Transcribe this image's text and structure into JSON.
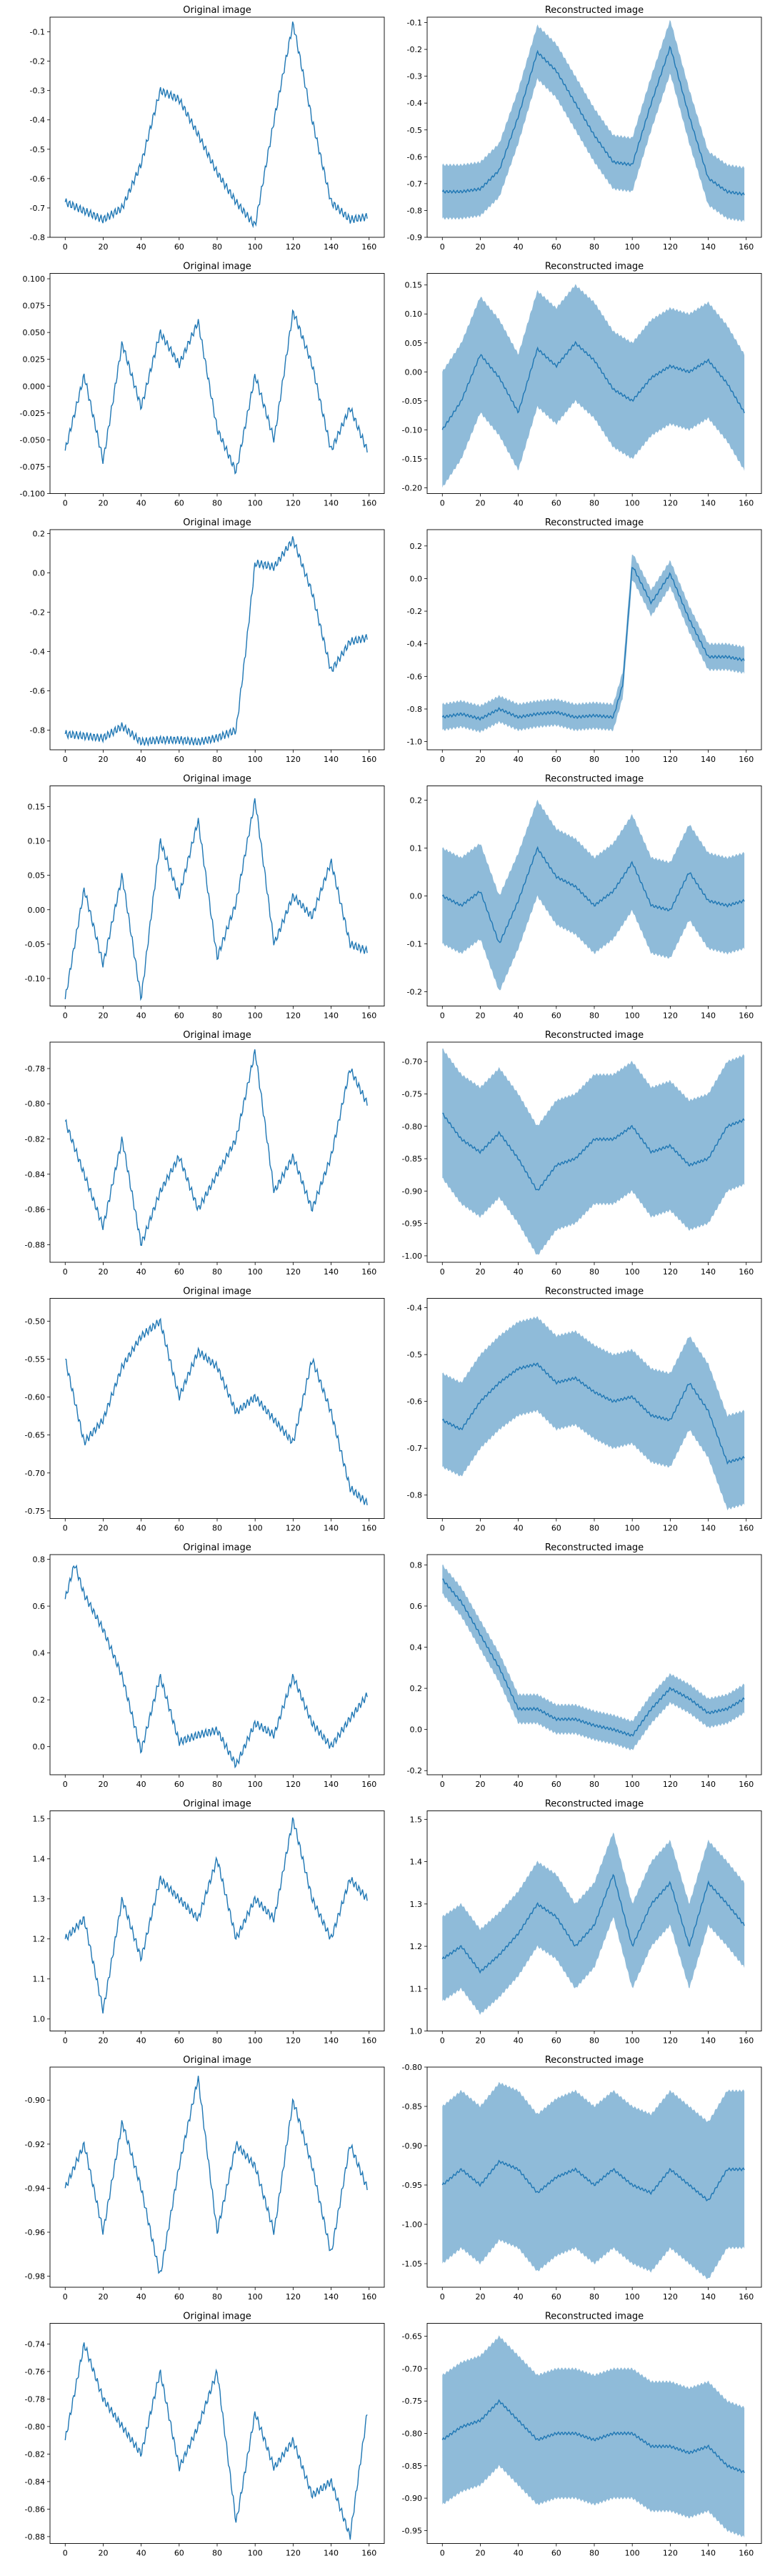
{
  "figure": {
    "line_color": "#1f77b4",
    "band_color": "#1f77b4"
  },
  "chart_data": [
    {
      "type": "line",
      "row": 0,
      "col": 0,
      "title": "Original image",
      "ylim": [
        -0.8,
        -0.05
      ],
      "yticks": [
        -0.8,
        -0.7,
        -0.6,
        -0.5,
        -0.4,
        -0.3,
        -0.2,
        -0.1
      ],
      "xlim": [
        -8,
        168
      ],
      "xticks": [
        0,
        20,
        40,
        60,
        80,
        100,
        120,
        140,
        160
      ],
      "x": [
        0,
        10,
        20,
        30,
        40,
        50,
        60,
        70,
        80,
        90,
        100,
        110,
        120,
        130,
        140,
        150,
        159
      ],
      "y": [
        -0.68,
        -0.71,
        -0.74,
        -0.7,
        -0.55,
        -0.3,
        -0.33,
        -0.45,
        -0.58,
        -0.68,
        -0.76,
        -0.4,
        -0.07,
        -0.4,
        -0.68,
        -0.74,
        -0.73
      ]
    },
    {
      "type": "area",
      "row": 0,
      "col": 1,
      "title": "Reconstructed image",
      "ylim": [
        -0.9,
        -0.08
      ],
      "yticks": [
        -0.9,
        -0.8,
        -0.7,
        -0.6,
        -0.5,
        -0.4,
        -0.3,
        -0.2,
        -0.1
      ],
      "xlim": [
        -8,
        168
      ],
      "xticks": [
        0,
        20,
        40,
        60,
        80,
        100,
        120,
        140,
        160
      ],
      "x": [
        0,
        10,
        20,
        30,
        40,
        50,
        60,
        70,
        80,
        90,
        100,
        110,
        120,
        130,
        140,
        150,
        159
      ],
      "y": [
        -0.73,
        -0.73,
        -0.72,
        -0.65,
        -0.45,
        -0.21,
        -0.28,
        -0.4,
        -0.52,
        -0.62,
        -0.63,
        -0.4,
        -0.19,
        -0.45,
        -0.68,
        -0.73,
        -0.74
      ],
      "band": 0.1
    },
    {
      "type": "line",
      "row": 1,
      "col": 0,
      "title": "Original image",
      "ylim": [
        -0.1,
        0.105
      ],
      "yticks": [
        -0.1,
        -0.075,
        -0.05,
        -0.025,
        0.0,
        0.025,
        0.05,
        0.075,
        0.1
      ],
      "xlim": [
        -8,
        168
      ],
      "xticks": [
        0,
        20,
        40,
        60,
        80,
        100,
        120,
        140,
        160
      ],
      "x": [
        0,
        10,
        20,
        30,
        40,
        50,
        60,
        70,
        80,
        90,
        100,
        110,
        120,
        130,
        140,
        150,
        159
      ],
      "y": [
        -0.06,
        0.01,
        -0.07,
        0.04,
        -0.02,
        0.05,
        0.02,
        0.06,
        -0.04,
        -0.08,
        0.01,
        -0.05,
        0.07,
        0.02,
        -0.06,
        -0.02,
        -0.06
      ]
    },
    {
      "type": "area",
      "row": 1,
      "col": 1,
      "title": "Reconstructed image",
      "ylim": [
        -0.21,
        0.17
      ],
      "yticks": [
        -0.2,
        -0.15,
        -0.1,
        -0.05,
        0.0,
        0.05,
        0.1,
        0.15
      ],
      "xlim": [
        -8,
        168
      ],
      "xticks": [
        0,
        20,
        40,
        60,
        80,
        100,
        120,
        140,
        160
      ],
      "x": [
        0,
        10,
        20,
        30,
        40,
        50,
        60,
        70,
        80,
        90,
        100,
        110,
        120,
        130,
        140,
        150,
        159
      ],
      "y": [
        -0.1,
        -0.05,
        0.03,
        -0.01,
        -0.07,
        0.04,
        0.01,
        0.05,
        0.02,
        -0.03,
        -0.05,
        -0.01,
        0.01,
        0.0,
        0.02,
        -0.02,
        -0.07
      ],
      "band": 0.1
    },
    {
      "type": "line",
      "row": 2,
      "col": 0,
      "title": "Original image",
      "ylim": [
        -0.9,
        0.22
      ],
      "yticks": [
        -0.8,
        -0.6,
        -0.4,
        -0.2,
        0.0,
        0.2
      ],
      "xlim": [
        -8,
        168
      ],
      "xticks": [
        0,
        20,
        40,
        60,
        80,
        100,
        120,
        140,
        160
      ],
      "x": [
        0,
        10,
        20,
        30,
        40,
        50,
        60,
        70,
        80,
        90,
        95,
        100,
        110,
        120,
        130,
        140,
        150,
        159
      ],
      "y": [
        -0.82,
        -0.83,
        -0.84,
        -0.78,
        -0.86,
        -0.85,
        -0.85,
        -0.86,
        -0.84,
        -0.8,
        -0.4,
        0.05,
        0.03,
        0.17,
        -0.1,
        -0.5,
        -0.35,
        -0.33
      ]
    },
    {
      "type": "area",
      "row": 2,
      "col": 1,
      "title": "Reconstructed image",
      "ylim": [
        -1.05,
        0.3
      ],
      "yticks": [
        -1.0,
        -0.8,
        -0.6,
        -0.4,
        -0.2,
        0.0,
        0.2
      ],
      "xlim": [
        -8,
        168
      ],
      "xticks": [
        0,
        20,
        40,
        60,
        80,
        100,
        120,
        140,
        160
      ],
      "x": [
        0,
        10,
        20,
        30,
        40,
        50,
        60,
        70,
        80,
        90,
        95,
        100,
        110,
        120,
        130,
        140,
        150,
        159
      ],
      "y": [
        -0.85,
        -0.83,
        -0.86,
        -0.8,
        -0.85,
        -0.83,
        -0.82,
        -0.85,
        -0.84,
        -0.85,
        -0.65,
        0.08,
        -0.15,
        0.03,
        -0.25,
        -0.48,
        -0.48,
        -0.5
      ],
      "band": 0.08
    },
    {
      "type": "line",
      "row": 3,
      "col": 0,
      "title": "Original image",
      "ylim": [
        -0.14,
        0.18
      ],
      "yticks": [
        -0.1,
        -0.05,
        0.0,
        0.05,
        0.1,
        0.15
      ],
      "xlim": [
        -8,
        168
      ],
      "xticks": [
        0,
        20,
        40,
        60,
        80,
        100,
        120,
        140,
        160
      ],
      "x": [
        0,
        10,
        20,
        30,
        40,
        50,
        60,
        70,
        80,
        90,
        100,
        110,
        120,
        130,
        140,
        150,
        159
      ],
      "y": [
        -0.13,
        0.03,
        -0.08,
        0.05,
        -0.13,
        0.1,
        0.02,
        0.13,
        -0.07,
        0.01,
        0.16,
        -0.05,
        0.02,
        -0.01,
        0.07,
        -0.05,
        -0.06
      ]
    },
    {
      "type": "area",
      "row": 3,
      "col": 1,
      "title": "Reconstructed image",
      "ylim": [
        -0.23,
        0.23
      ],
      "yticks": [
        -0.2,
        -0.1,
        0.0,
        0.1,
        0.2
      ],
      "xlim": [
        -8,
        168
      ],
      "xticks": [
        0,
        20,
        40,
        60,
        80,
        100,
        120,
        140,
        160
      ],
      "x": [
        0,
        10,
        20,
        30,
        40,
        50,
        60,
        70,
        80,
        90,
        100,
        110,
        120,
        130,
        140,
        150,
        159
      ],
      "y": [
        0.0,
        -0.02,
        0.01,
        -0.1,
        -0.01,
        0.1,
        0.04,
        0.02,
        -0.02,
        0.01,
        0.07,
        -0.02,
        -0.03,
        0.05,
        -0.01,
        -0.02,
        -0.01
      ],
      "band": 0.1
    },
    {
      "type": "line",
      "row": 4,
      "col": 0,
      "title": "Original image",
      "ylim": [
        -0.89,
        -0.765
      ],
      "yticks": [
        -0.88,
        -0.86,
        -0.84,
        -0.82,
        -0.8,
        -0.78
      ],
      "xlim": [
        -8,
        168
      ],
      "xticks": [
        0,
        20,
        40,
        60,
        80,
        100,
        120,
        140,
        160
      ],
      "x": [
        0,
        10,
        20,
        30,
        40,
        50,
        60,
        70,
        80,
        90,
        100,
        110,
        120,
        130,
        140,
        150,
        159
      ],
      "y": [
        -0.81,
        -0.84,
        -0.87,
        -0.82,
        -0.88,
        -0.85,
        -0.83,
        -0.86,
        -0.84,
        -0.82,
        -0.77,
        -0.85,
        -0.83,
        -0.86,
        -0.83,
        -0.78,
        -0.8
      ]
    },
    {
      "type": "area",
      "row": 4,
      "col": 1,
      "title": "Reconstructed image",
      "ylim": [
        -1.01,
        -0.67
      ],
      "yticks": [
        -1.0,
        -0.95,
        -0.9,
        -0.85,
        -0.8,
        -0.75,
        -0.7
      ],
      "xlim": [
        -8,
        168
      ],
      "xticks": [
        0,
        20,
        40,
        60,
        80,
        100,
        120,
        140,
        160
      ],
      "x": [
        0,
        10,
        20,
        30,
        40,
        50,
        60,
        70,
        80,
        90,
        100,
        110,
        120,
        130,
        140,
        150,
        159
      ],
      "y": [
        -0.78,
        -0.82,
        -0.84,
        -0.81,
        -0.85,
        -0.9,
        -0.86,
        -0.85,
        -0.82,
        -0.82,
        -0.8,
        -0.84,
        -0.83,
        -0.86,
        -0.85,
        -0.8,
        -0.79
      ],
      "band": 0.1
    },
    {
      "type": "line",
      "row": 5,
      "col": 0,
      "title": "Original image",
      "ylim": [
        -0.76,
        -0.47
      ],
      "yticks": [
        -0.75,
        -0.7,
        -0.65,
        -0.6,
        -0.55,
        -0.5
      ],
      "xlim": [
        -8,
        168
      ],
      "xticks": [
        0,
        20,
        40,
        60,
        80,
        100,
        120,
        140,
        160
      ],
      "x": [
        0,
        10,
        20,
        30,
        40,
        50,
        60,
        70,
        80,
        90,
        100,
        110,
        120,
        130,
        140,
        150,
        159
      ],
      "y": [
        -0.55,
        -0.66,
        -0.63,
        -0.56,
        -0.52,
        -0.5,
        -0.6,
        -0.54,
        -0.56,
        -0.62,
        -0.6,
        -0.63,
        -0.66,
        -0.55,
        -0.62,
        -0.72,
        -0.74
      ]
    },
    {
      "type": "area",
      "row": 5,
      "col": 1,
      "title": "Reconstructed image",
      "ylim": [
        -0.85,
        -0.38
      ],
      "yticks": [
        -0.8,
        -0.7,
        -0.6,
        -0.5,
        -0.4
      ],
      "xlim": [
        -8,
        168
      ],
      "xticks": [
        0,
        20,
        40,
        60,
        80,
        100,
        120,
        140,
        160
      ],
      "x": [
        0,
        10,
        20,
        30,
        40,
        50,
        60,
        70,
        80,
        90,
        100,
        110,
        120,
        130,
        140,
        150,
        159
      ],
      "y": [
        -0.64,
        -0.66,
        -0.6,
        -0.56,
        -0.53,
        -0.52,
        -0.56,
        -0.55,
        -0.58,
        -0.6,
        -0.59,
        -0.63,
        -0.64,
        -0.56,
        -0.62,
        -0.73,
        -0.72
      ],
      "band": 0.1
    },
    {
      "type": "line",
      "row": 6,
      "col": 0,
      "title": "Original image",
      "ylim": [
        -0.12,
        0.82
      ],
      "yticks": [
        0.0,
        0.2,
        0.4,
        0.6,
        0.8
      ],
      "xlim": [
        -8,
        168
      ],
      "xticks": [
        0,
        20,
        40,
        60,
        80,
        100,
        120,
        140,
        160
      ],
      "x": [
        0,
        5,
        10,
        20,
        30,
        40,
        50,
        60,
        70,
        80,
        90,
        100,
        110,
        120,
        130,
        140,
        150,
        159
      ],
      "y": [
        0.63,
        0.78,
        0.65,
        0.5,
        0.3,
        -0.02,
        0.3,
        0.02,
        0.05,
        0.07,
        -0.08,
        0.1,
        0.05,
        0.3,
        0.1,
        0.0,
        0.12,
        0.22
      ]
    },
    {
      "type": "area",
      "row": 6,
      "col": 1,
      "title": "Reconstructed image",
      "ylim": [
        -0.22,
        0.85
      ],
      "yticks": [
        -0.2,
        0.0,
        0.2,
        0.4,
        0.6,
        0.8
      ],
      "xlim": [
        -8,
        168
      ],
      "xticks": [
        0,
        20,
        40,
        60,
        80,
        100,
        120,
        140,
        160
      ],
      "x": [
        0,
        10,
        20,
        30,
        40,
        50,
        60,
        70,
        80,
        90,
        100,
        110,
        120,
        130,
        140,
        150,
        159
      ],
      "y": [
        0.73,
        0.62,
        0.46,
        0.3,
        0.1,
        0.1,
        0.05,
        0.05,
        0.02,
        0.0,
        -0.03,
        0.1,
        0.2,
        0.15,
        0.08,
        0.1,
        0.15
      ],
      "band": 0.07
    },
    {
      "type": "line",
      "row": 7,
      "col": 0,
      "title": "Original image",
      "ylim": [
        0.97,
        1.52
      ],
      "yticks": [
        1.0,
        1.1,
        1.2,
        1.3,
        1.4,
        1.5
      ],
      "xlim": [
        -8,
        168
      ],
      "xticks": [
        0,
        20,
        40,
        60,
        80,
        100,
        120,
        140,
        160
      ],
      "x": [
        0,
        10,
        20,
        30,
        40,
        50,
        60,
        70,
        80,
        90,
        100,
        110,
        120,
        130,
        140,
        150,
        159
      ],
      "y": [
        1.2,
        1.25,
        1.02,
        1.3,
        1.15,
        1.35,
        1.3,
        1.25,
        1.4,
        1.2,
        1.3,
        1.25,
        1.5,
        1.3,
        1.2,
        1.35,
        1.3
      ]
    },
    {
      "type": "area",
      "row": 7,
      "col": 1,
      "title": "Reconstructed image",
      "ylim": [
        1.0,
        1.52
      ],
      "yticks": [
        1.0,
        1.1,
        1.2,
        1.3,
        1.4,
        1.5
      ],
      "xlim": [
        -8,
        168
      ],
      "xticks": [
        0,
        20,
        40,
        60,
        80,
        100,
        120,
        140,
        160
      ],
      "x": [
        0,
        10,
        20,
        30,
        40,
        50,
        60,
        70,
        80,
        90,
        100,
        110,
        120,
        130,
        140,
        150,
        159
      ],
      "y": [
        1.17,
        1.2,
        1.14,
        1.18,
        1.23,
        1.3,
        1.27,
        1.2,
        1.25,
        1.37,
        1.2,
        1.3,
        1.35,
        1.2,
        1.35,
        1.3,
        1.25
      ],
      "band": 0.1
    },
    {
      "type": "line",
      "row": 8,
      "col": 0,
      "title": "Original image",
      "ylim": [
        -0.985,
        -0.885
      ],
      "yticks": [
        -0.98,
        -0.96,
        -0.94,
        -0.92,
        -0.9
      ],
      "xlim": [
        -8,
        168
      ],
      "xticks": [
        0,
        20,
        40,
        60,
        80,
        100,
        120,
        140,
        160
      ],
      "x": [
        0,
        10,
        20,
        30,
        40,
        50,
        60,
        70,
        80,
        90,
        100,
        110,
        120,
        130,
        140,
        150,
        159
      ],
      "y": [
        -0.94,
        -0.92,
        -0.96,
        -0.91,
        -0.94,
        -0.98,
        -0.93,
        -0.89,
        -0.96,
        -0.92,
        -0.93,
        -0.96,
        -0.9,
        -0.93,
        -0.97,
        -0.92,
        -0.94
      ]
    },
    {
      "type": "area",
      "row": 8,
      "col": 1,
      "title": "Reconstructed image",
      "ylim": [
        -1.08,
        -0.8
      ],
      "yticks": [
        -1.05,
        -1.0,
        -0.95,
        -0.9,
        -0.85,
        -0.8
      ],
      "xlim": [
        -8,
        168
      ],
      "xticks": [
        0,
        20,
        40,
        60,
        80,
        100,
        120,
        140,
        160
      ],
      "x": [
        0,
        10,
        20,
        30,
        40,
        50,
        60,
        70,
        80,
        90,
        100,
        110,
        120,
        130,
        140,
        150,
        159
      ],
      "y": [
        -0.95,
        -0.93,
        -0.95,
        -0.92,
        -0.93,
        -0.96,
        -0.94,
        -0.93,
        -0.95,
        -0.93,
        -0.95,
        -0.96,
        -0.93,
        -0.95,
        -0.97,
        -0.93,
        -0.93
      ],
      "band": 0.1
    },
    {
      "type": "line",
      "row": 9,
      "col": 0,
      "title": "Original image",
      "ylim": [
        -0.885,
        -0.725
      ],
      "yticks": [
        -0.88,
        -0.86,
        -0.84,
        -0.82,
        -0.8,
        -0.78,
        -0.76,
        -0.74
      ],
      "xlim": [
        -8,
        168
      ],
      "xticks": [
        0,
        20,
        40,
        60,
        80,
        100,
        120,
        140,
        160
      ],
      "x": [
        0,
        10,
        20,
        30,
        40,
        50,
        60,
        70,
        80,
        90,
        100,
        110,
        120,
        130,
        140,
        150,
        159
      ],
      "y": [
        -0.81,
        -0.74,
        -0.78,
        -0.8,
        -0.82,
        -0.76,
        -0.83,
        -0.8,
        -0.76,
        -0.87,
        -0.79,
        -0.83,
        -0.81,
        -0.85,
        -0.84,
        -0.88,
        -0.79
      ]
    },
    {
      "type": "area",
      "row": 9,
      "col": 1,
      "title": "Reconstructed image",
      "ylim": [
        -0.97,
        -0.63
      ],
      "yticks": [
        -0.95,
        -0.9,
        -0.85,
        -0.8,
        -0.75,
        -0.7,
        -0.65
      ],
      "xlim": [
        -8,
        168
      ],
      "xticks": [
        0,
        20,
        40,
        60,
        80,
        100,
        120,
        140,
        160
      ],
      "x": [
        0,
        10,
        20,
        30,
        40,
        50,
        60,
        70,
        80,
        90,
        100,
        110,
        120,
        130,
        140,
        150,
        159
      ],
      "y": [
        -0.81,
        -0.79,
        -0.78,
        -0.75,
        -0.78,
        -0.81,
        -0.8,
        -0.8,
        -0.81,
        -0.8,
        -0.8,
        -0.82,
        -0.82,
        -0.83,
        -0.82,
        -0.85,
        -0.86
      ],
      "band": 0.1
    }
  ]
}
